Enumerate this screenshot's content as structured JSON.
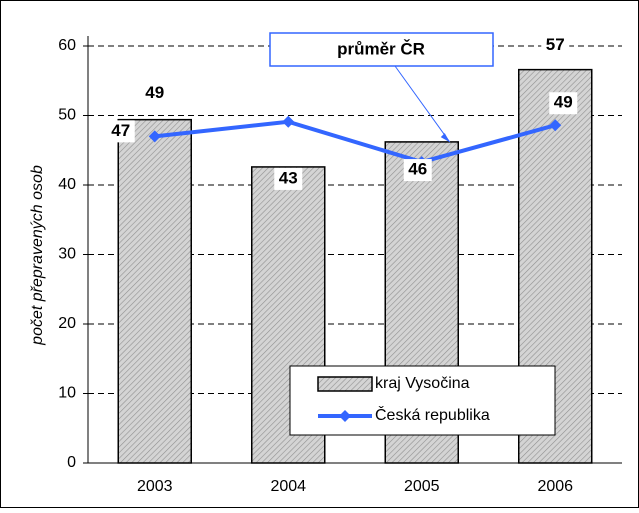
{
  "chart_data": {
    "type": "bar",
    "y_label": "počet přepravených osob",
    "categories": [
      "2003",
      "2004",
      "2005",
      "2006"
    ],
    "series": [
      {
        "name": "kraj Vysočina",
        "type": "bar",
        "color": "#c0c0c0",
        "values": [
          49.4,
          42.6,
          46.2,
          56.6
        ],
        "value_labels": [
          "49",
          "43",
          "46",
          "57"
        ]
      },
      {
        "name": "Česká republika",
        "type": "line",
        "color": "#3366ff",
        "values": [
          47,
          49.1,
          43.3,
          48.6
        ],
        "value_labels": [
          "47",
          null,
          null,
          "49"
        ]
      }
    ],
    "annotation": "průměr ČR",
    "ylim": [
      0,
      60
    ],
    "yticks": [
      0,
      10,
      20,
      30,
      40,
      50,
      60
    ],
    "grid": true,
    "legend": "lower right"
  }
}
